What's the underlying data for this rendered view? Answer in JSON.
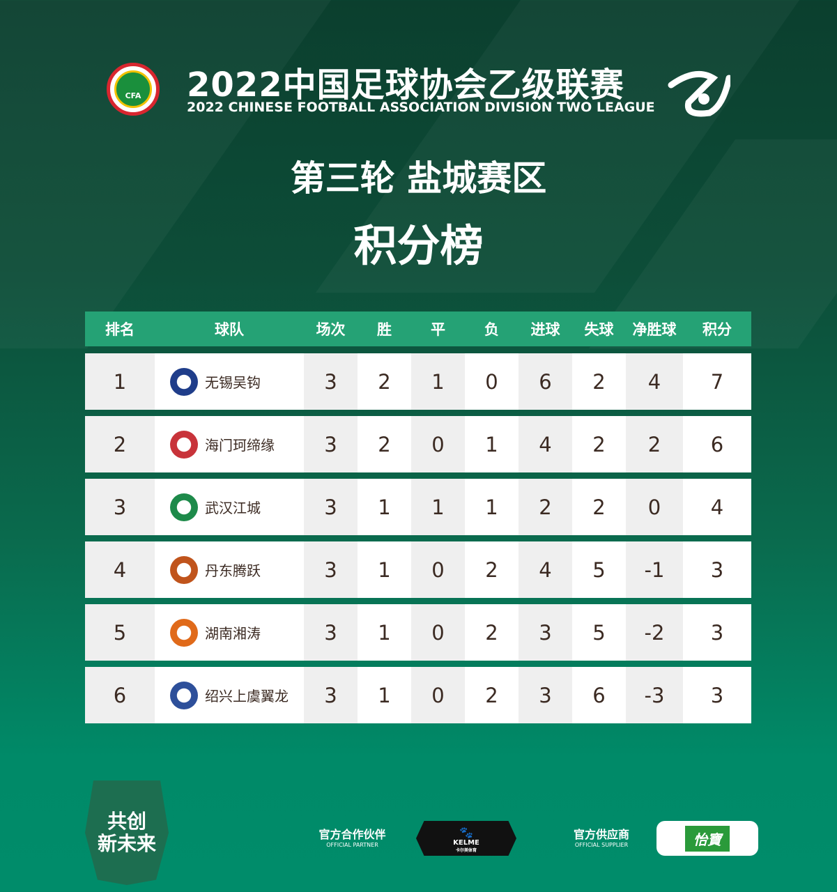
{
  "header": {
    "logo_text": "CFA",
    "title": "2022中国足球协会乙级联赛",
    "subtitle": "2022 CHINESE FOOTBALL ASSOCIATION DIVISION TWO LEAGUE"
  },
  "round": "第三轮 盐城赛区",
  "board_title": "积分榜",
  "columns": [
    "排名",
    "球队",
    "场次",
    "胜",
    "平",
    "负",
    "进球",
    "失球",
    "净胜球",
    "积分"
  ],
  "rows": [
    {
      "rank": "1",
      "team": "无锡吴钩",
      "played": "3",
      "w": "2",
      "d": "1",
      "l": "0",
      "gf": "6",
      "ga": "2",
      "gd": "4",
      "pts": "7",
      "logo_color": "#1f3d8a"
    },
    {
      "rank": "2",
      "team": "海门珂缔缘",
      "played": "3",
      "w": "2",
      "d": "0",
      "l": "1",
      "gf": "4",
      "ga": "2",
      "gd": "2",
      "pts": "6",
      "logo_color": "#c8333a"
    },
    {
      "rank": "3",
      "team": "武汉江城",
      "played": "3",
      "w": "1",
      "d": "1",
      "l": "1",
      "gf": "2",
      "ga": "2",
      "gd": "0",
      "pts": "4",
      "logo_color": "#1d8a4a"
    },
    {
      "rank": "4",
      "team": "丹东腾跃",
      "played": "3",
      "w": "1",
      "d": "0",
      "l": "2",
      "gf": "4",
      "ga": "5",
      "gd": "-1",
      "pts": "3",
      "logo_color": "#c0541c"
    },
    {
      "rank": "5",
      "team": "湖南湘涛",
      "played": "3",
      "w": "1",
      "d": "0",
      "l": "2",
      "gf": "3",
      "ga": "5",
      "gd": "-2",
      "pts": "3",
      "logo_color": "#e06a1a"
    },
    {
      "rank": "6",
      "team": "绍兴上虞翼龙",
      "played": "3",
      "w": "1",
      "d": "0",
      "l": "2",
      "gf": "3",
      "ga": "6",
      "gd": "-3",
      "pts": "3",
      "logo_color": "#2d4f9a"
    }
  ],
  "footer": {
    "slogan_line1": "共创",
    "slogan_line2": "新未来",
    "partner_label": "官方合作伙伴",
    "partner_label_en": "OFFICIAL PARTNER",
    "partner_brand": "KELME",
    "partner_brand_cn": "卡尔美体育",
    "supplier_label": "官方供应商",
    "supplier_label_en": "OFFICIAL SUPPLIER",
    "supplier_brand": "怡寶"
  }
}
